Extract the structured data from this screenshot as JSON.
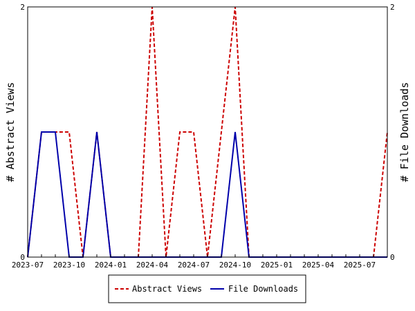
{
  "chart_data": {
    "type": "line",
    "title": "",
    "x": [
      "2023-07",
      "2023-08",
      "2023-09",
      "2023-10",
      "2023-11",
      "2023-12",
      "2024-01",
      "2024-02",
      "2024-03",
      "2024-04",
      "2024-05",
      "2024-06",
      "2024-07",
      "2024-08",
      "2024-09",
      "2024-10",
      "2024-11",
      "2024-12",
      "2025-01",
      "2025-02",
      "2025-03",
      "2025-04",
      "2025-05",
      "2025-06",
      "2025-07",
      "2025-08",
      "2025-09"
    ],
    "x_ticks": [
      "2023-07",
      "2023-10",
      "2024-01",
      "2024-04",
      "2024-07",
      "2024-10",
      "2025-01",
      "2025-04",
      "2025-07"
    ],
    "ylabel_left": "# Abstract Views",
    "ylabel_right": "# File Downloads",
    "ylim_left": [
      0,
      2
    ],
    "ylim_right": [
      0,
      2
    ],
    "yticks_left": [
      "0",
      "2"
    ],
    "yticks_right": [
      "0",
      "2"
    ],
    "grid": false,
    "legend_position": "bottom",
    "series": [
      {
        "name": "Abstract Views",
        "axis": "left",
        "color": "#cc0000",
        "line_style": "dashed",
        "values": [
          0,
          1,
          1,
          1,
          0,
          1,
          0,
          0,
          0,
          2,
          0,
          1,
          1,
          0,
          1,
          2,
          0,
          0,
          0,
          0,
          0,
          0,
          0,
          0,
          0,
          0,
          1
        ]
      },
      {
        "name": "File Downloads",
        "axis": "right",
        "color": "#0000aa",
        "line_style": "solid",
        "values": [
          0,
          1,
          1,
          0,
          0,
          1,
          0,
          0,
          0,
          0,
          0,
          0,
          0,
          0,
          0,
          1,
          0,
          0,
          0,
          0,
          0,
          0,
          0,
          0,
          0,
          0,
          0
        ]
      }
    ]
  }
}
